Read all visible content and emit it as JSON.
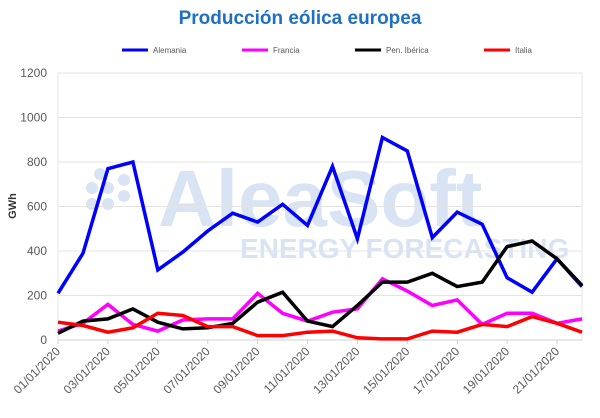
{
  "chart_data": {
    "type": "line",
    "title": "Producción eólica europea",
    "xlabel": "",
    "ylabel": "GWh",
    "ylim": [
      0,
      1200
    ],
    "yticks": [
      0,
      200,
      400,
      600,
      800,
      1000,
      1200
    ],
    "grid": true,
    "legend_position": "top",
    "watermark": {
      "brand": "AleaSoft",
      "tagline": "ENERGY FORECASTING"
    },
    "x": [
      "01/01/2020",
      "02/01/2020",
      "03/01/2020",
      "04/01/2020",
      "05/01/2020",
      "06/01/2020",
      "07/01/2020",
      "08/01/2020",
      "09/01/2020",
      "10/01/2020",
      "11/01/2020",
      "12/01/2020",
      "13/01/2020",
      "14/01/2020",
      "15/01/2020",
      "16/01/2020",
      "17/01/2020",
      "18/01/2020",
      "19/01/2020",
      "20/01/2020",
      "21/01/2020",
      "22/01/2020"
    ],
    "xtick_labels": [
      "01/01/2020",
      "03/01/2020",
      "05/01/2020",
      "07/01/2020",
      "09/01/2020",
      "11/01/2020",
      "13/01/2020",
      "15/01/2020",
      "17/01/2020",
      "19/01/2020",
      "21/01/2020"
    ],
    "series": [
      {
        "name": "Alemania",
        "color": "#0000ff",
        "values": [
          210,
          390,
          770,
          800,
          315,
          395,
          490,
          570,
          530,
          610,
          515,
          780,
          455,
          910,
          850,
          460,
          575,
          520,
          280,
          215,
          365,
          240
        ]
      },
      {
        "name": "Francia",
        "color": "#ff00ff",
        "values": [
          40,
          75,
          160,
          70,
          40,
          90,
          95,
          95,
          210,
          120,
          85,
          125,
          140,
          275,
          220,
          155,
          180,
          70,
          120,
          120,
          75,
          95
        ]
      },
      {
        "name": "Pen. Ibérica",
        "color": "#000000",
        "values": [
          30,
          85,
          95,
          140,
          80,
          50,
          55,
          75,
          170,
          215,
          85,
          60,
          155,
          260,
          260,
          300,
          240,
          260,
          420,
          445,
          365,
          245
        ]
      },
      {
        "name": "Italia",
        "color": "#ff0000",
        "values": [
          80,
          65,
          35,
          55,
          120,
          110,
          60,
          60,
          20,
          20,
          35,
          40,
          10,
          5,
          5,
          40,
          35,
          70,
          60,
          105,
          75,
          35
        ]
      }
    ]
  }
}
